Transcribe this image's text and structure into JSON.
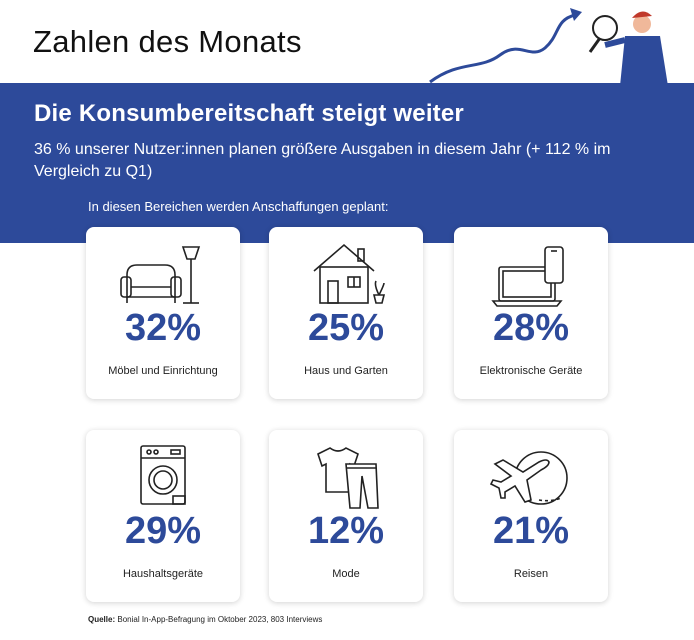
{
  "header": {
    "title": "Zahlen des Monats"
  },
  "band": {
    "headline": "Die Konsumbereitschaft steigt weiter",
    "subline": "36 % unserer Nutzer:innen planen größere Ausgaben in diesem Jahr (+ 112 % im Vergleich zu Q1)",
    "intro": "In diesen Bereichen werden Anschaffungen geplant:"
  },
  "cards": [
    {
      "percent": "32%",
      "label": "Möbel und Einrichtung",
      "icon": "armchair-lamp-icon"
    },
    {
      "percent": "25%",
      "label": "Haus und Garten",
      "icon": "house-plant-icon"
    },
    {
      "percent": "28%",
      "label": "Elektronische Geräte",
      "icon": "laptop-phone-icon"
    },
    {
      "percent": "29%",
      "label": "Haushaltsgeräte",
      "icon": "washing-machine-icon"
    },
    {
      "percent": "12%",
      "label": "Mode",
      "icon": "shirt-trousers-icon"
    },
    {
      "percent": "21%",
      "label": "Reisen",
      "icon": "airplane-globe-icon"
    }
  ],
  "footer": {
    "source_label": "Quelle:",
    "source_text": "Bonial In-App-Befragung im Oktober 2023, 803 Interviews"
  },
  "colors": {
    "accent": "#2d4a9a",
    "background": "#ffffff"
  }
}
